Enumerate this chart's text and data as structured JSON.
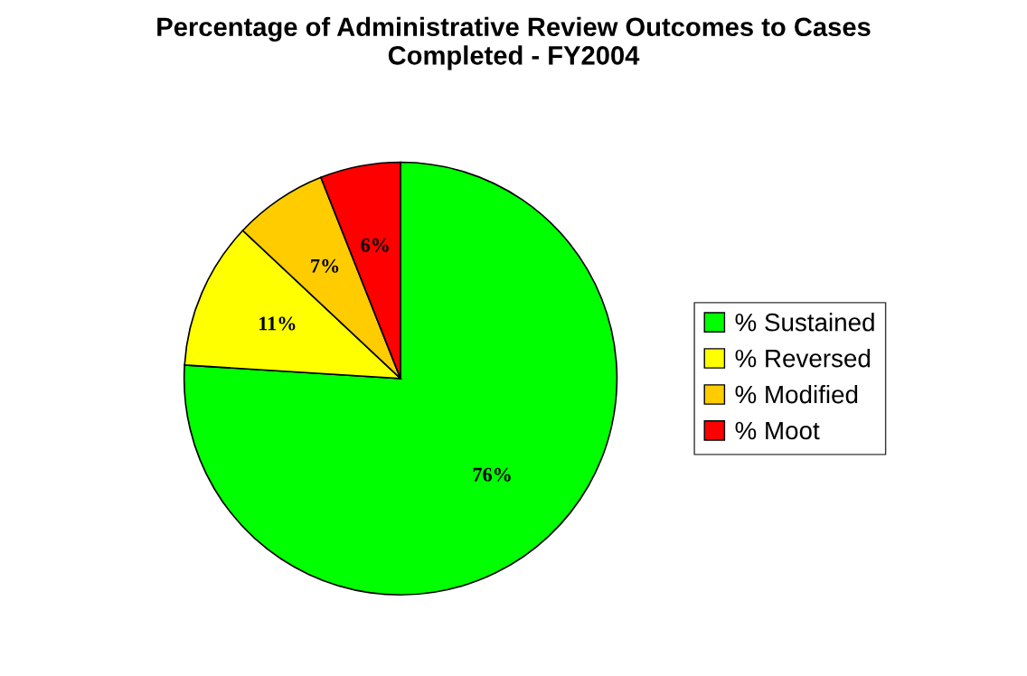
{
  "chart_data": {
    "type": "pie",
    "title": "Percentage of Administrative Review Outcomes to Cases\nCompleted - FY2004",
    "categories": [
      "% Sustained",
      "% Reversed",
      "% Modified",
      "% Moot"
    ],
    "values": [
      76,
      11,
      7,
      6
    ],
    "colors": [
      "#00ff00",
      "#ffff00",
      "#ffcc00",
      "#ff0000"
    ],
    "value_labels": [
      "76%",
      "11%",
      "7%",
      "6%"
    ],
    "legend": "right"
  }
}
